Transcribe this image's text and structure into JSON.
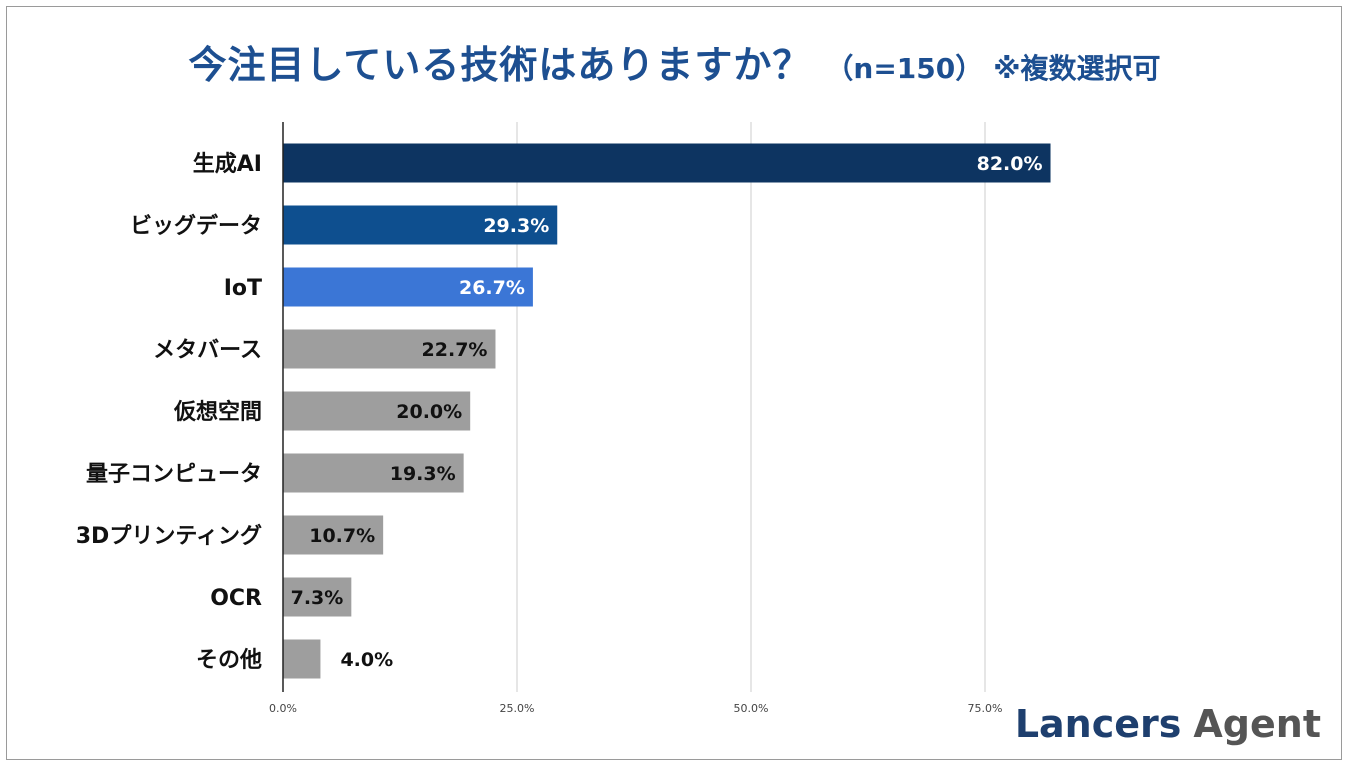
{
  "title": {
    "main": "今注目している技術はありますか？",
    "sample": "（n=150）",
    "note": "※複数選択可"
  },
  "logo": {
    "part1": "Lancers",
    "part2": "Agent"
  },
  "colors": {
    "bar_highlight": [
      "#0d3461",
      "#0e4f8f",
      "#3b76d6"
    ],
    "bar_default": "#9e9e9e",
    "grid": "#cccccc",
    "axis": "#222222"
  },
  "chart_data": {
    "type": "bar",
    "orientation": "horizontal",
    "title": "今注目している技術はありますか？（n=150）※複数選択可",
    "categories": [
      "生成AI",
      "ビッグデータ",
      "IoT",
      "メタバース",
      "仮想空間",
      "量子コンピュータ",
      "3Dプリンティング",
      "OCR",
      "その他"
    ],
    "values": [
      82.0,
      29.3,
      26.7,
      22.7,
      20.0,
      19.3,
      10.7,
      7.3,
      4.0
    ],
    "value_labels": [
      "82.0%",
      "29.3%",
      "26.7%",
      "22.7%",
      "20.0%",
      "19.3%",
      "10.7%",
      "7.3%",
      "4.0%"
    ],
    "xticks": [
      0,
      25,
      50,
      75
    ],
    "xtick_labels": [
      "0.0%",
      "25.0%",
      "50.0%",
      "75.0%"
    ],
    "xlim": [
      0,
      100
    ],
    "xlabel": "",
    "ylabel": "",
    "grid": true
  }
}
